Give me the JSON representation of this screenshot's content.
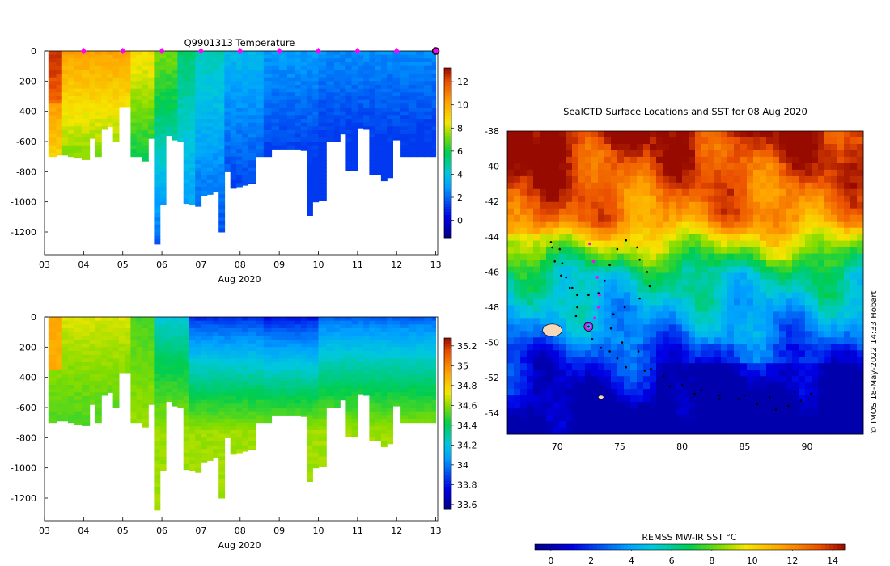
{
  "chart_data": [
    {
      "type": "heatmap",
      "title": "Q9901313  Temperature",
      "xlabel": "Aug 2020",
      "ylabel": "",
      "x_ticks": [
        "03",
        "04",
        "05",
        "06",
        "07",
        "08",
        "09",
        "10",
        "11",
        "12",
        "13"
      ],
      "xlim": [
        3,
        13.05
      ],
      "y_ticks": [
        0,
        -200,
        -400,
        -600,
        -800,
        -1000,
        -1200
      ],
      "ylim": [
        -1350,
        0
      ],
      "colorbar": {
        "ticks": [
          0,
          2,
          4,
          6,
          8,
          10,
          12
        ],
        "range": [
          -1.5,
          13.2
        ]
      },
      "profile_markers_day": [
        4,
        5,
        6,
        7,
        8,
        9,
        10,
        11,
        12
      ],
      "last_profile_day": 13,
      "profiles": [
        [
          3.1,
          -700
        ],
        [
          3.3,
          -690
        ],
        [
          3.45,
          -690
        ],
        [
          3.6,
          -700
        ],
        [
          3.75,
          -710
        ],
        [
          3.95,
          -720
        ],
        [
          4.15,
          -580
        ],
        [
          4.3,
          -700
        ],
        [
          4.45,
          -520
        ],
        [
          4.6,
          -500
        ],
        [
          4.75,
          -600
        ],
        [
          4.9,
          -370
        ],
        [
          5.05,
          -370
        ],
        [
          5.2,
          -700
        ],
        [
          5.35,
          -700
        ],
        [
          5.5,
          -730
        ],
        [
          5.65,
          -580
        ],
        [
          5.8,
          -1280
        ],
        [
          5.95,
          -1020
        ],
        [
          6.1,
          -560
        ],
        [
          6.25,
          -590
        ],
        [
          6.4,
          -600
        ],
        [
          6.55,
          -1010
        ],
        [
          6.7,
          -1020
        ],
        [
          6.85,
          -1030
        ],
        [
          7.0,
          -960
        ],
        [
          7.15,
          -950
        ],
        [
          7.3,
          -930
        ],
        [
          7.45,
          -1200
        ],
        [
          7.6,
          -800
        ],
        [
          7.75,
          -910
        ],
        [
          7.9,
          -900
        ],
        [
          8.05,
          -890
        ],
        [
          8.2,
          -880
        ],
        [
          8.4,
          -700
        ],
        [
          8.6,
          -700
        ],
        [
          8.8,
          -650
        ],
        [
          9.0,
          -650
        ],
        [
          9.2,
          -650
        ],
        [
          9.4,
          -650
        ],
        [
          9.55,
          -660
        ],
        [
          9.7,
          -1090
        ],
        [
          9.85,
          -1000
        ],
        [
          10.0,
          -990
        ],
        [
          10.2,
          -600
        ],
        [
          10.4,
          -600
        ],
        [
          10.55,
          -550
        ],
        [
          10.7,
          -790
        ],
        [
          10.85,
          -790
        ],
        [
          11.0,
          -510
        ],
        [
          11.15,
          -520
        ],
        [
          11.3,
          -820
        ],
        [
          11.45,
          -820
        ],
        [
          11.6,
          -860
        ],
        [
          11.75,
          -840
        ],
        [
          11.9,
          -590
        ],
        [
          12.1,
          -700
        ],
        [
          12.3,
          -700
        ],
        [
          12.5,
          -700
        ],
        [
          12.7,
          -700
        ],
        [
          12.9,
          -700
        ]
      ]
    },
    {
      "type": "heatmap",
      "title": "",
      "xlabel": "Aug 2020",
      "ylabel": "",
      "x_ticks": [
        "03",
        "04",
        "05",
        "06",
        "07",
        "08",
        "09",
        "10",
        "11",
        "12",
        "13"
      ],
      "xlim": [
        3,
        13.05
      ],
      "y_ticks": [
        0,
        -200,
        -400,
        -600,
        -800,
        -1000,
        -1200
      ],
      "ylim": [
        -1350,
        0
      ],
      "colorbar": {
        "ticks": [
          33.6,
          33.8,
          34,
          34.2,
          34.4,
          34.6,
          34.8,
          35,
          35.2
        ],
        "range": [
          33.55,
          35.28
        ]
      }
    },
    {
      "type": "heatmap",
      "title": "SealCTD Surface Locations and SST for 08 Aug 2020",
      "xlabel": "",
      "ylabel": "",
      "x_ticks": [
        70,
        75,
        80,
        85,
        90
      ],
      "xlim": [
        66,
        94.5
      ],
      "y_ticks": [
        -38,
        -40,
        -42,
        -44,
        -46,
        -48,
        -50,
        -52,
        -54
      ],
      "ylim": [
        -55.2,
        -38
      ],
      "colorbar_label": "REMSS MW-IR SST °C",
      "colorbar": {
        "ticks": [
          0,
          2,
          4,
          6,
          8,
          10,
          12,
          14
        ],
        "range": [
          -0.8,
          14.6
        ]
      },
      "current_position": [
        72.5,
        -49.1
      ],
      "recent_positions": [
        [
          72.6,
          -44.4
        ],
        [
          72.9,
          -45.4
        ],
        [
          73.2,
          -46.3
        ],
        [
          73.4,
          -47.3
        ],
        [
          73.3,
          -48.0
        ],
        [
          73.0,
          -48.6
        ]
      ],
      "track": [
        [
          69.5,
          -44.3
        ],
        [
          70.2,
          -44.7
        ],
        [
          70.4,
          -45.5
        ],
        [
          70.7,
          -46.3
        ],
        [
          71.0,
          -46.9
        ],
        [
          71.6,
          -47.3
        ],
        [
          71.6,
          -48.0
        ],
        [
          71.5,
          -48.5
        ],
        [
          72.3,
          -48.9
        ],
        [
          72.5,
          -49.1
        ],
        [
          72.8,
          -49.8
        ],
        [
          73.5,
          -50.3
        ],
        [
          74.2,
          -50.5
        ],
        [
          74.8,
          -50.9
        ],
        [
          75.5,
          -51.4
        ],
        [
          77.0,
          -51.6
        ],
        [
          78.5,
          -51.9
        ],
        [
          80.0,
          -52.4
        ],
        [
          81.5,
          -52.7
        ],
        [
          83.0,
          -53.0
        ],
        [
          84.5,
          -53.2
        ],
        [
          86.0,
          -53.5
        ],
        [
          87.5,
          -53.8
        ],
        [
          88.5,
          -53.6
        ],
        [
          89.5,
          -53.3
        ],
        [
          90.3,
          -52.9
        ],
        [
          89.0,
          -52.8
        ],
        [
          87.0,
          -53.1
        ],
        [
          85.0,
          -53.0
        ],
        [
          83.0,
          -53.2
        ],
        [
          81.0,
          -52.9
        ],
        [
          79.0,
          -52.5
        ],
        [
          77.5,
          -51.5
        ],
        [
          76.5,
          -50.5
        ],
        [
          75.2,
          -50.0
        ],
        [
          74.3,
          -49.2
        ],
        [
          74.5,
          -48.4
        ],
        [
          75.4,
          -48.0
        ],
        [
          76.6,
          -47.5
        ],
        [
          77.4,
          -46.8
        ],
        [
          77.2,
          -46.0
        ],
        [
          76.6,
          -45.3
        ],
        [
          76.4,
          -44.6
        ],
        [
          75.5,
          -44.2
        ],
        [
          74.8,
          -44.7
        ],
        [
          74.2,
          -45.6
        ],
        [
          73.8,
          -46.5
        ],
        [
          73.3,
          -47.2
        ],
        [
          72.5,
          -47.3
        ],
        [
          71.2,
          -46.9
        ],
        [
          70.3,
          -46.2
        ],
        [
          69.8,
          -45.4
        ],
        [
          69.6,
          -44.6
        ]
      ],
      "islands": [
        {
          "lon": 69.6,
          "lat": -49.3,
          "size": 1.2
        },
        {
          "lon": 73.5,
          "lat": -53.1,
          "size": 0.35
        }
      ],
      "footnote": "© IMOS 18-May-2022 14:33 Hobart"
    }
  ]
}
